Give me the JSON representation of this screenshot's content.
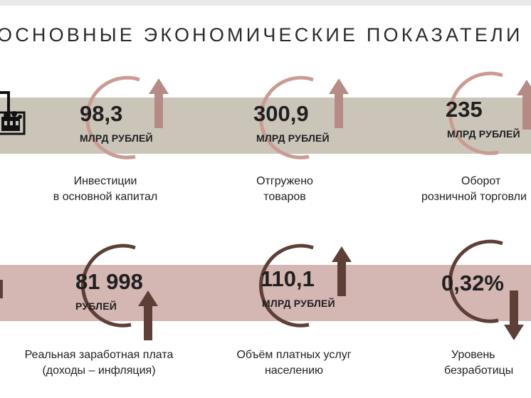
{
  "title": "ОСНОВНЫЕ ЭКОНОМИЧЕСКИЕ ПОКАЗАТЕЛИ",
  "colors": {
    "band_top": "#cbc5b9",
    "band_bottom": "#d4b6b3",
    "ring_light": "#c99c93",
    "ring_dark": "#5e3f38",
    "arrow_light": "#b68b85",
    "arrow_dark": "#5e3f38"
  },
  "indicators": [
    {
      "value": "98,3",
      "unit": "МЛРД РУБЛЕЙ",
      "caption": [
        "Инвестиции",
        "в основной капитал"
      ],
      "trend": "up",
      "icon": "arrow-up-icon"
    },
    {
      "value": "300,9",
      "unit": "МЛРД РУБЛЕЙ",
      "caption": [
        "Отгружено",
        "товаров"
      ],
      "trend": "up",
      "icon": "arrow-up-icon"
    },
    {
      "value": "235",
      "unit": "МЛРД РУБЛЕЙ",
      "caption": [
        "Оборот",
        "розничной торговли"
      ],
      "trend": "up",
      "icon": "arrow-up-icon"
    },
    {
      "value": "81 998",
      "unit": "РУБЛЕЙ",
      "caption": [
        "Реальная заработная плата",
        "(доходы – инфляция)"
      ],
      "trend": "up",
      "icon": "arrow-up-icon"
    },
    {
      "value": "110,1",
      "unit": "МЛРД РУБЛЕЙ",
      "caption": [
        "Объём платных услуг",
        "населению"
      ],
      "trend": "up",
      "icon": "arrow-up-icon"
    },
    {
      "value": "0,32%",
      "unit": "",
      "caption": [
        "Уровень",
        "безработицы"
      ],
      "trend": "down",
      "icon": "arrow-down-icon"
    }
  ],
  "icons": [
    "factory-icon"
  ]
}
